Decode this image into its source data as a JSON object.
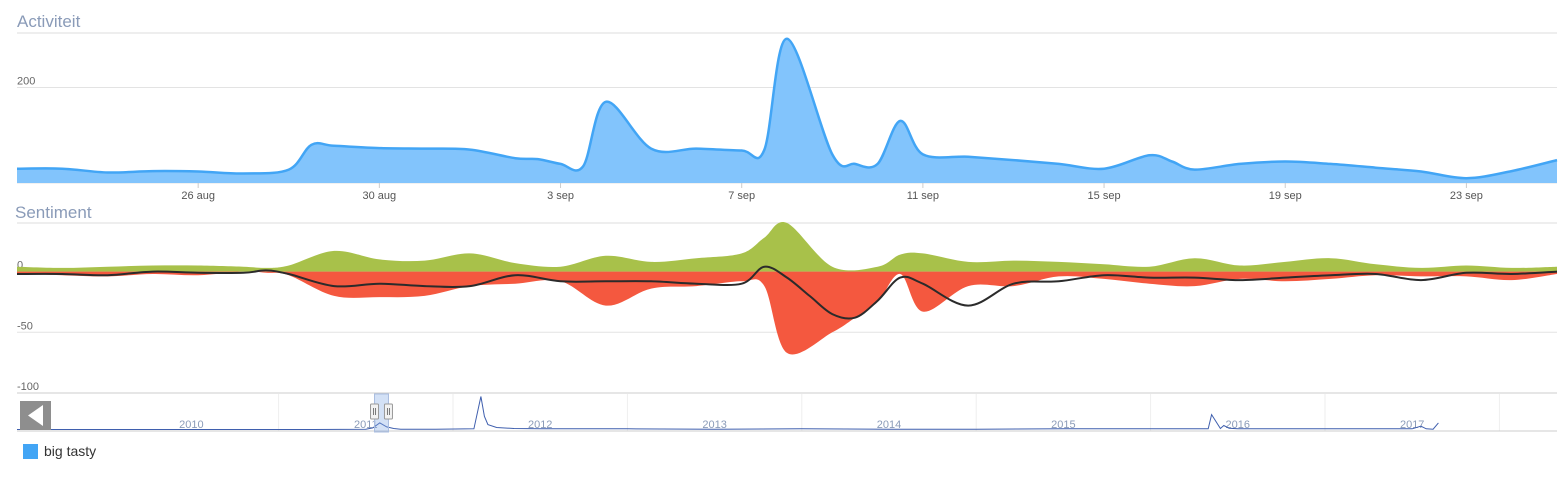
{
  "colors": {
    "activity": "#42a5f5",
    "activity_fill": "#82c4fc",
    "positive": "#a8c14a",
    "negative": "#f4583f",
    "net_line": "#2b2b2b",
    "navigator_line": "#3f5fae",
    "title": "#8a9bb8"
  },
  "chart_data": [
    {
      "type": "area",
      "title": "Activiteit",
      "x_unit": "day",
      "x_labels": [
        "26 aug",
        "30 aug",
        "3 sep",
        "7 sep",
        "11 sep",
        "15 sep",
        "19 sep",
        "23 sep"
      ],
      "x_label_positions": [
        5,
        9,
        13,
        17,
        21,
        25,
        29,
        33
      ],
      "x_range": [
        1,
        35
      ],
      "yticks": [
        0,
        200
      ],
      "ylim": [
        0,
        310
      ],
      "series": [
        {
          "name": "big tasty",
          "x": [
            1,
            2,
            3,
            4,
            5,
            6,
            7,
            7.5,
            8,
            9,
            10,
            11,
            12,
            12.5,
            13,
            13.5,
            14,
            15,
            16,
            17,
            17.5,
            18,
            19,
            19.5,
            20,
            20.5,
            21,
            22,
            23,
            24,
            25,
            26,
            26.5,
            27,
            28,
            29,
            30,
            31,
            32,
            33,
            34,
            35
          ],
          "values": [
            30,
            30,
            22,
            25,
            24,
            20,
            28,
            80,
            78,
            73,
            72,
            70,
            52,
            50,
            40,
            35,
            170,
            72,
            72,
            68,
            70,
            302,
            60,
            40,
            40,
            130,
            60,
            55,
            48,
            40,
            30,
            58,
            45,
            28,
            40,
            45,
            40,
            32,
            24,
            10,
            25,
            48
          ]
        }
      ]
    },
    {
      "type": "area",
      "title": "Sentiment",
      "x_range": [
        1,
        35
      ],
      "yticks": [
        0,
        -50,
        -100
      ],
      "ylim": [
        -100,
        40
      ],
      "series": [
        {
          "x": [
            1,
            2,
            3,
            4,
            5,
            6,
            6.5,
            7,
            8,
            9,
            10,
            11,
            12,
            13,
            14,
            15,
            16,
            17,
            17.5,
            18,
            19,
            20,
            20.5,
            21,
            22,
            23,
            24,
            25,
            26,
            27,
            28,
            29,
            30,
            31,
            32,
            33,
            34,
            35
          ],
          "values": [
            4,
            3,
            4,
            5,
            5,
            4,
            3,
            5,
            17,
            10,
            9,
            15,
            7,
            4,
            13,
            8,
            11,
            15,
            28,
            40,
            4,
            4,
            14,
            15,
            8,
            9,
            8,
            6,
            4,
            11,
            5,
            8,
            11,
            6,
            3,
            5,
            3,
            4
          ]
        },
        {
          "x": [
            1,
            2,
            3,
            4,
            5,
            6,
            6.5,
            7,
            8,
            9,
            10,
            11,
            12,
            13,
            14,
            15,
            16,
            17,
            17.5,
            18,
            19,
            19.5,
            20,
            20.5,
            21,
            22,
            23,
            24,
            25,
            26,
            27,
            28,
            29,
            30,
            31,
            32,
            33,
            34,
            35
          ],
          "values": [
            -2,
            -3,
            -4,
            -2,
            -3,
            0,
            -1,
            -3,
            -20,
            -21,
            -20,
            -12,
            -10,
            -8,
            -28,
            -14,
            -12,
            -8,
            -12,
            -67,
            -50,
            -38,
            -25,
            -2,
            -33,
            -12,
            -12,
            -4,
            -6,
            -10,
            -12,
            -6,
            -8,
            -6,
            -3,
            -4,
            -4,
            -7,
            -2
          ]
        },
        {
          "x": [
            1,
            2,
            3,
            4,
            5,
            6,
            6.5,
            7,
            8,
            9,
            10,
            11,
            12,
            13,
            14,
            15,
            16,
            17,
            17.5,
            18,
            18.5,
            19,
            19.5,
            20,
            20.5,
            21,
            22,
            23,
            24,
            25,
            26,
            27,
            28,
            29,
            30,
            31,
            32,
            33,
            34,
            35
          ],
          "values": [
            -2,
            -2,
            -3,
            0,
            -1,
            -1,
            1,
            -2,
            -12,
            -10,
            -12,
            -12,
            -3,
            -8,
            -8,
            -8,
            -10,
            -10,
            4,
            -5,
            -20,
            -35,
            -38,
            -24,
            -5,
            -10,
            -28,
            -10,
            -8,
            -3,
            -5,
            -5,
            -7,
            -5,
            -3,
            -2,
            -7,
            -1,
            -2,
            0
          ]
        }
      ]
    },
    {
      "type": "line",
      "title": "",
      "x_labels": [
        "2010",
        "2011",
        "2012",
        "2013",
        "2014",
        "2015",
        "2016",
        "2017"
      ],
      "series": [
        {
          "x": [
            2009.5,
            2011.2,
            2011.5,
            2011.54,
            2011.58,
            2011.62,
            2011.66,
            2011.7,
            2011.9,
            2012.12,
            2012.16,
            2012.18,
            2012.2,
            2012.25,
            2012.35,
            2012.5,
            2013.0,
            2013.5,
            2014.0,
            2014.5,
            2015.0,
            2015.5,
            2016.0,
            2016.33,
            2016.35,
            2016.4,
            2016.42,
            2016.45,
            2016.5,
            2017.0,
            2017.5,
            2017.55,
            2017.58,
            2017.62,
            2017.65
          ],
          "values": [
            0,
            0,
            0.01,
            0.05,
            0.2,
            0.08,
            0.03,
            0.01,
            0.01,
            0.02,
            1.0,
            0.4,
            0.15,
            0.06,
            0.03,
            0.02,
            0.02,
            0.01,
            0.02,
            0.01,
            0.01,
            0.02,
            0.02,
            0.02,
            0.45,
            0.03,
            0.12,
            0.04,
            0.02,
            0.02,
            0.02,
            0.1,
            0.02,
            0.01,
            0.2
          ]
        }
      ],
      "selection": [
        2011.55,
        2011.63
      ]
    }
  ],
  "legend": {
    "items": [
      {
        "label": "big tasty"
      }
    ]
  }
}
